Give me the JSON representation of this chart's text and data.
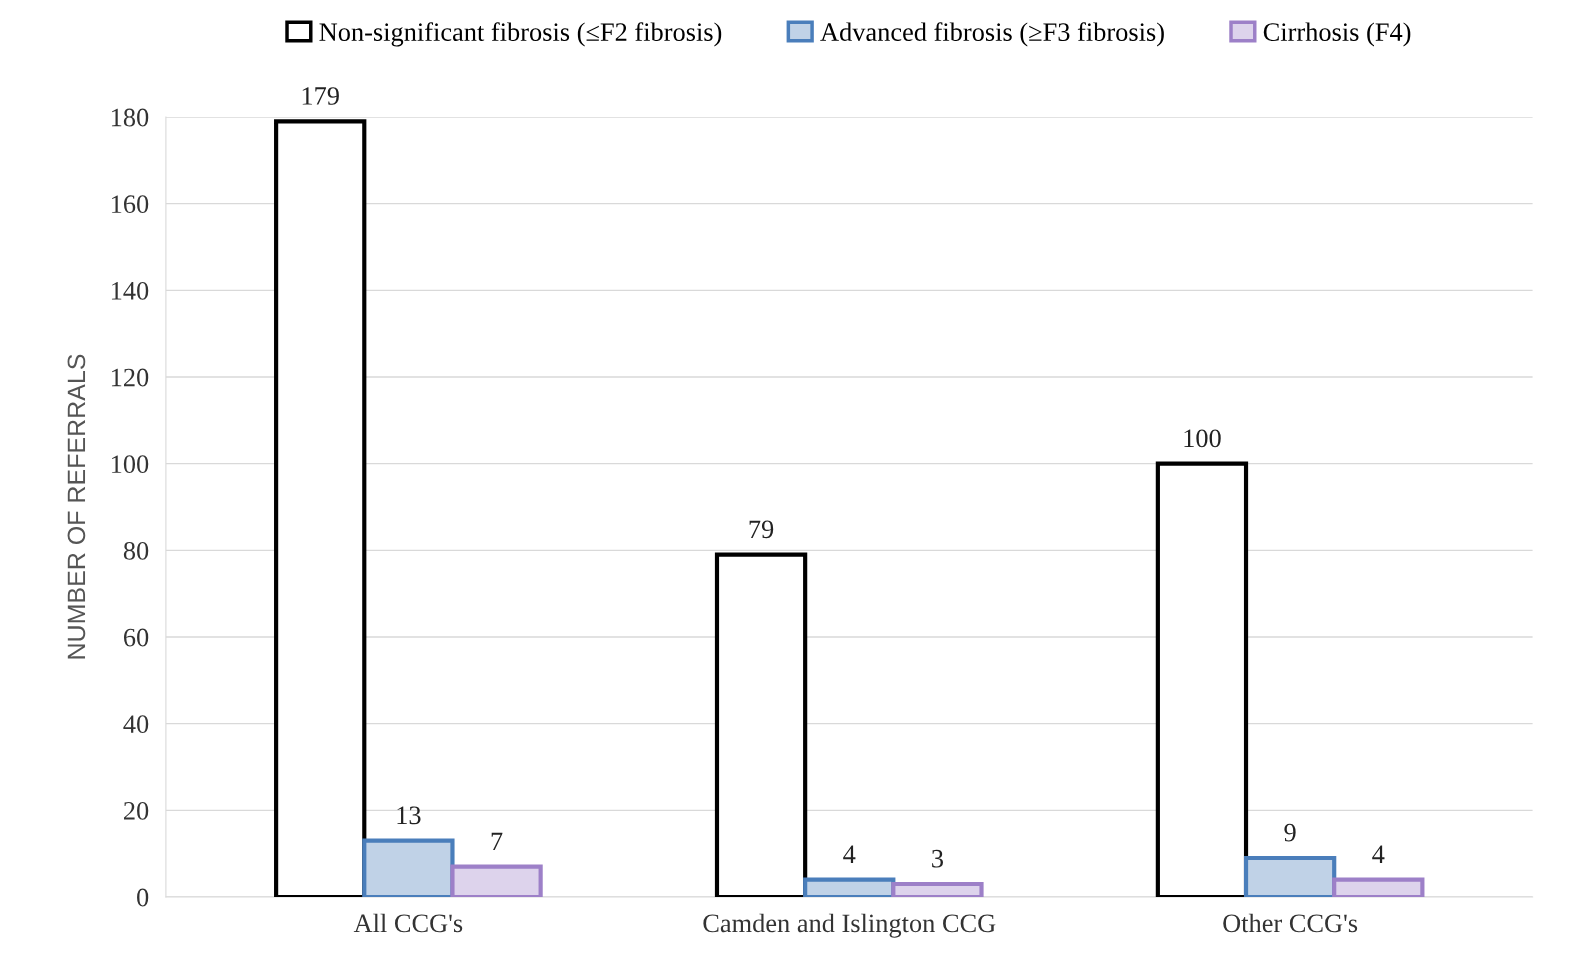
{
  "chart_data": {
    "type": "bar",
    "ylabel": "NUMBER OF REFERRALS",
    "categories": [
      "All CCG's",
      "Camden and Islington CCG",
      "Other CCG's"
    ],
    "series": [
      {
        "name": "Non-significant fibrosis (≤F2 fibrosis)",
        "color": "#000000",
        "values": [
          179,
          79,
          100
        ]
      },
      {
        "name": "Advanced fibrosis (≥F3 fibrosis)",
        "color": "#4a7ebb",
        "values": [
          13,
          4,
          9
        ]
      },
      {
        "name": "Cirrhosis (F4)",
        "color": "#9d80c8",
        "values": [
          7,
          3,
          4
        ]
      }
    ],
    "ylim": [
      0,
      180
    ],
    "yticks": [
      0,
      20,
      40,
      60,
      80,
      100,
      120,
      140,
      160,
      180
    ],
    "grid": "y",
    "legend": "top",
    "data_labels": true
  }
}
